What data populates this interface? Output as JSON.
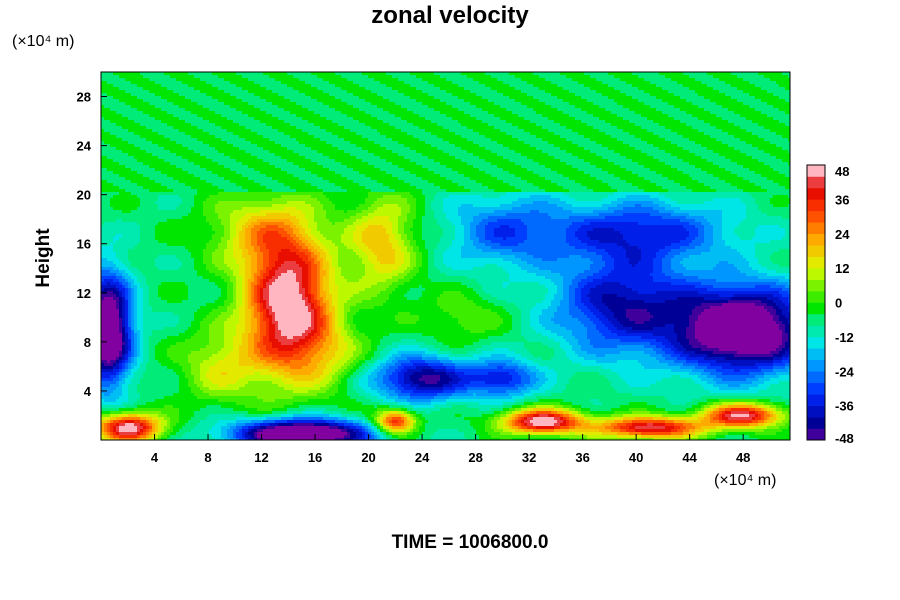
{
  "chart_data": {
    "type": "heatmap",
    "title": "zonal velocity",
    "ylabel": "Height",
    "xlabel": "",
    "x_unit": "(×10⁴ m)",
    "y_unit": "(×10⁴ m)",
    "footer": "TIME = 1006800.0",
    "xlim": [
      0,
      51.5
    ],
    "ylim": [
      0,
      30
    ],
    "x_ticks": [
      4,
      8,
      12,
      16,
      20,
      24,
      28,
      32,
      36,
      40,
      44,
      48
    ],
    "y_ticks": [
      4,
      8,
      12,
      16,
      20,
      24,
      28
    ],
    "colorbar": {
      "ticks": [
        48,
        36,
        24,
        12,
        0,
        -12,
        -24,
        -36,
        -48
      ],
      "range": [
        -48,
        48
      ],
      "levels": 24
    },
    "upper_layer_value": -2,
    "features": [
      {
        "x": 14,
        "y": 11,
        "value": 58,
        "sx": 3.2,
        "sy": 5.5
      },
      {
        "x": 12,
        "y": 17,
        "value": 20,
        "sx": 4,
        "sy": 3
      },
      {
        "x": 21,
        "y": 16,
        "value": 25,
        "sx": 2.5,
        "sy": 4
      },
      {
        "x": 9,
        "y": 6,
        "value": 18,
        "sx": 3,
        "sy": 3
      },
      {
        "x": 17,
        "y": 7,
        "value": 12,
        "sx": 3,
        "sy": 3
      },
      {
        "x": 0.5,
        "y": 9,
        "value": -58,
        "sx": 1.8,
        "sy": 4.5
      },
      {
        "x": 48,
        "y": 9,
        "value": -60,
        "sx": 5,
        "sy": 3.5
      },
      {
        "x": 39,
        "y": 11,
        "value": -35,
        "sx": 5,
        "sy": 4
      },
      {
        "x": 40,
        "y": 17,
        "value": -28,
        "sx": 7,
        "sy": 2.5
      },
      {
        "x": 30,
        "y": 17,
        "value": -20,
        "sx": 4,
        "sy": 3
      },
      {
        "x": 24,
        "y": 5,
        "value": -40,
        "sx": 3.5,
        "sy": 1.8
      },
      {
        "x": 30,
        "y": 5,
        "value": -30,
        "sx": 2.5,
        "sy": 1.5
      },
      {
        "x": 27,
        "y": 10,
        "value": 10,
        "sx": 3,
        "sy": 2
      },
      {
        "x": 15,
        "y": 0.5,
        "value": -62,
        "sx": 5,
        "sy": 1.2
      },
      {
        "x": 2,
        "y": 1,
        "value": 55,
        "sx": 2.5,
        "sy": 1.2
      },
      {
        "x": 33,
        "y": 1.5,
        "value": 55,
        "sx": 3,
        "sy": 1
      },
      {
        "x": 41,
        "y": 1,
        "value": 50,
        "sx": 4,
        "sy": 0.9
      },
      {
        "x": 48,
        "y": 2,
        "value": 50,
        "sx": 3,
        "sy": 1
      },
      {
        "x": 22,
        "y": 1.5,
        "value": 45,
        "sx": 1.5,
        "sy": 1
      }
    ]
  }
}
